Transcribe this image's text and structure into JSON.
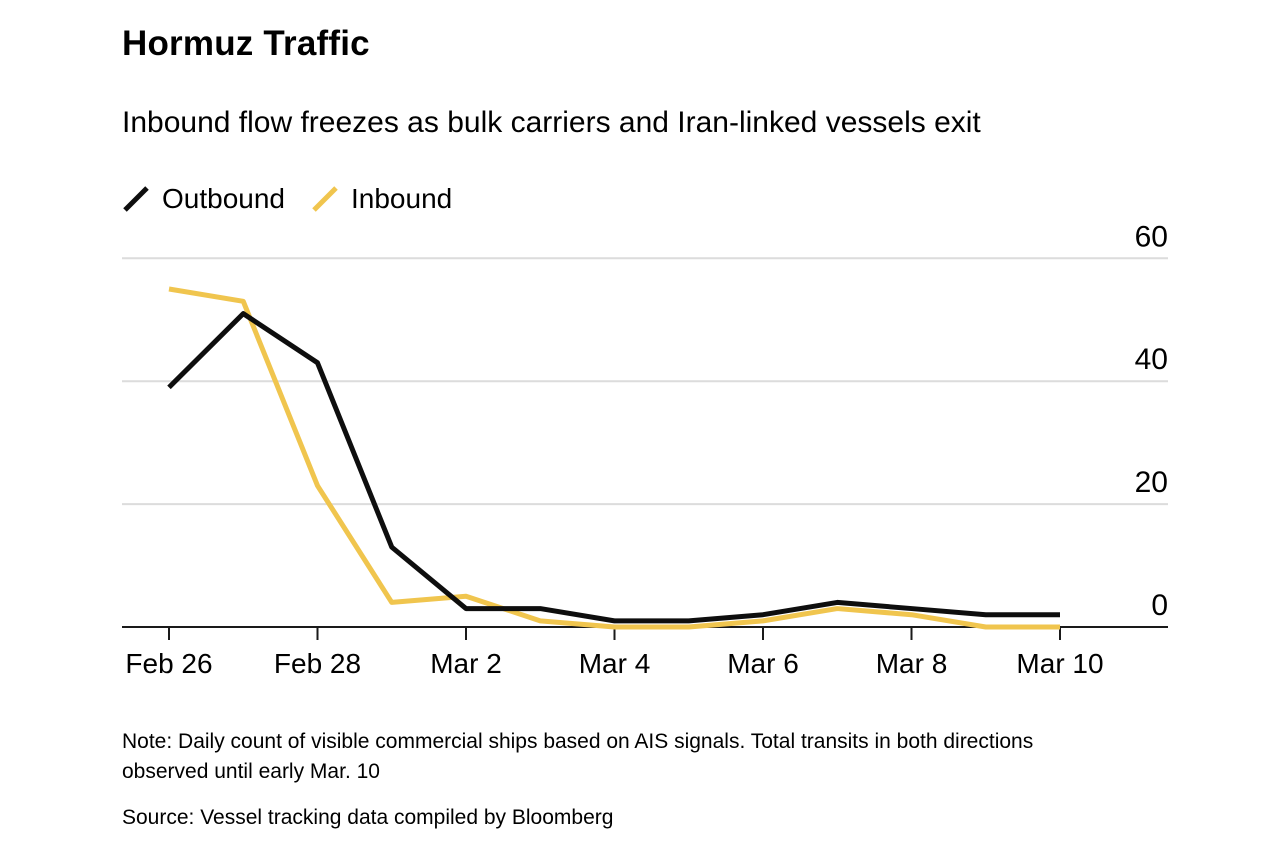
{
  "header": {
    "title": "Hormuz Traffic",
    "subtitle": "Inbound flow freezes as bulk carriers and Iran-linked vessels exit"
  },
  "chart_data": {
    "type": "line",
    "categories": [
      "Feb 26",
      "Feb 27",
      "Feb 28",
      "Mar 1",
      "Mar 2",
      "Mar 3",
      "Mar 4",
      "Mar 5",
      "Mar 6",
      "Mar 7",
      "Mar 8",
      "Mar 9",
      "Mar 10"
    ],
    "x_ticks": [
      "Feb 26",
      "Feb 28",
      "Mar 2",
      "Mar 4",
      "Mar 6",
      "Mar 8",
      "Mar 10"
    ],
    "series": [
      {
        "name": "Outbound",
        "color": "#0e0e0e",
        "values": [
          39,
          51,
          43,
          13,
          3,
          3,
          1,
          1,
          2,
          4,
          3,
          2,
          2
        ]
      },
      {
        "name": "Inbound",
        "color": "#f0c54e",
        "values": [
          55,
          53,
          23,
          4,
          5,
          1,
          0,
          0,
          1,
          3,
          2,
          0,
          0
        ]
      }
    ],
    "y_ticks": [
      0,
      20,
      40,
      60
    ],
    "ylim": [
      0,
      60
    ],
    "grid": "horizontal",
    "legend_position": "top-left",
    "y_axis_side": "right",
    "grid_color": "#dcdcdc",
    "axis_color": "#1a1a1a",
    "tick_label_color": "#000000"
  },
  "footer": {
    "note": "Note: Daily count of visible commercial ships based on AIS signals. Total transits in both directions observed until early Mar. 10",
    "source": "Source: Vessel tracking data compiled by Bloomberg"
  }
}
